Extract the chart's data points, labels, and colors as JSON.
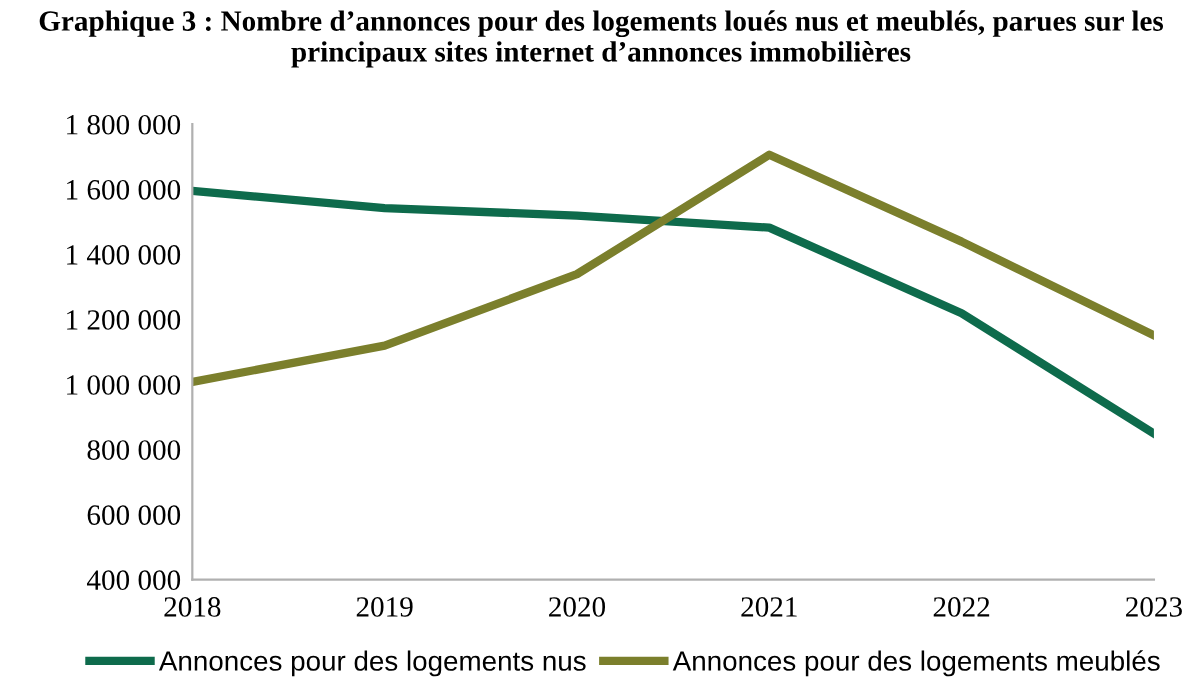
{
  "chart_data": {
    "type": "line",
    "title": "Graphique 3 : Nombre d’annonces pour des logements loués nus et meublés, parues sur les principaux sites internet d’annonces immobilières",
    "x": [
      2018,
      2019,
      2020,
      2021,
      2022,
      2023
    ],
    "series": [
      {
        "name": "Annonces pour des logements nus",
        "color": "#0e6b4c",
        "values": [
          1595000,
          1542000,
          1519000,
          1482000,
          1219000,
          849000
        ]
      },
      {
        "name": "Annonces pour des logements meublés",
        "color": "#7b7f2c",
        "values": [
          1008000,
          1119000,
          1339000,
          1706000,
          1439000,
          1151000
        ]
      }
    ],
    "xlim": [
      2018,
      2023
    ],
    "xticks": [
      2018,
      2019,
      2020,
      2021,
      2022,
      2023
    ],
    "ylim": [
      400000,
      1800000
    ],
    "yticks": [
      {
        "value": 400000,
        "label": "400 000"
      },
      {
        "value": 600000,
        "label": "600 000"
      },
      {
        "value": 800000,
        "label": "800 000"
      },
      {
        "value": 1000000,
        "label": "1 000 000"
      },
      {
        "value": 1200000,
        "label": "1 200 000"
      },
      {
        "value": 1400000,
        "label": "1 400 000"
      },
      {
        "value": 1600000,
        "label": "1 600 000"
      },
      {
        "value": 1800000,
        "label": "1 800 000"
      }
    ],
    "grid": false,
    "legend": "bottom",
    "marker": "none",
    "line_style": "solid"
  }
}
